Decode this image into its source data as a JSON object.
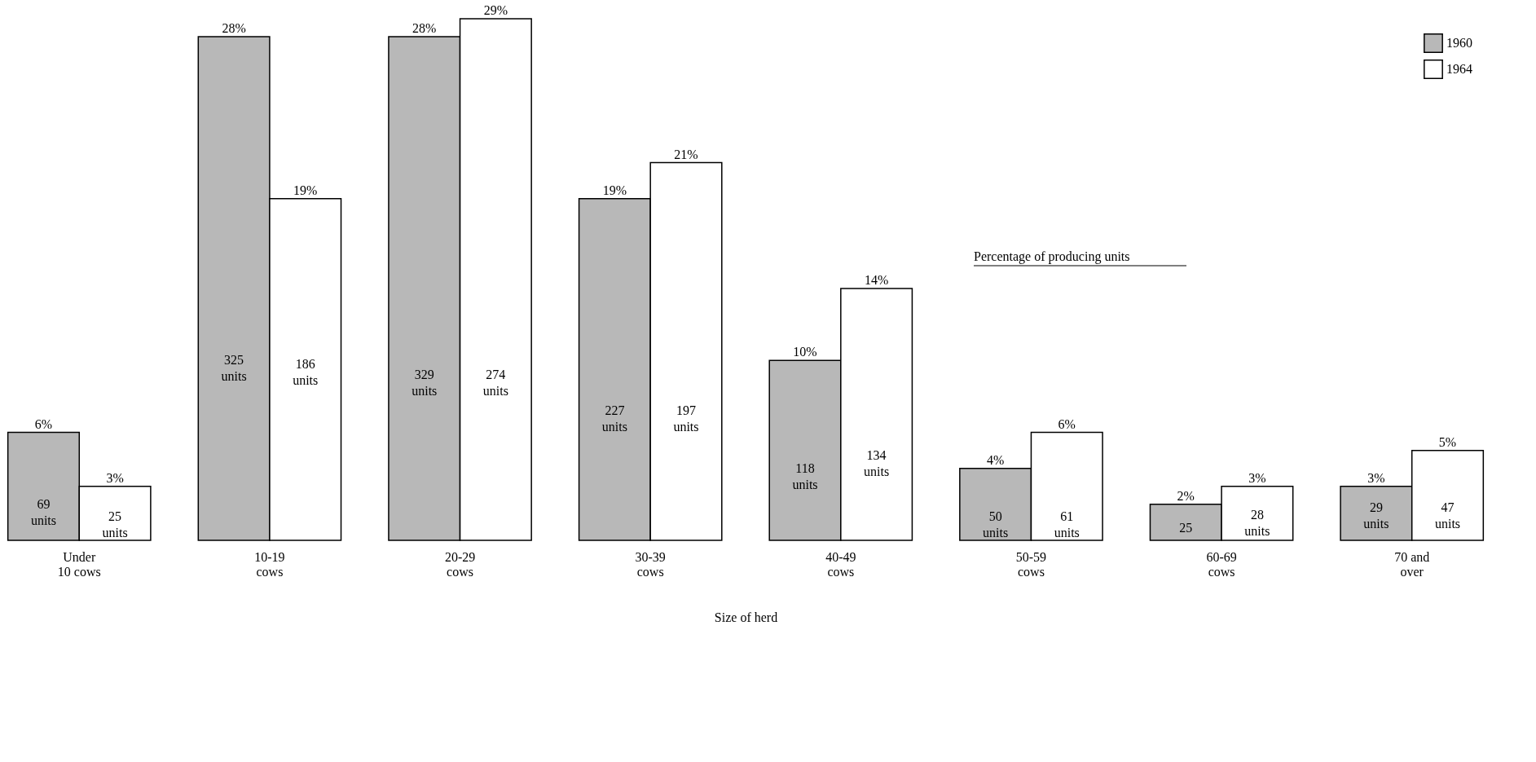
{
  "chart_data": {
    "type": "bar",
    "xlabel": "Size of herd",
    "categories": [
      "Under\n10 cows",
      "10-19\ncows",
      "20-29\ncows",
      "30-39\ncows",
      "40-49\ncows",
      "50-59\ncows",
      "60-69\ncows",
      "70 and\nover"
    ],
    "series": [
      {
        "name": "1960",
        "color": "#b8b8b8",
        "values": [
          6,
          28,
          28,
          19,
          10,
          4,
          2,
          3
        ],
        "value_labels": [
          "6%",
          "28%",
          "28%",
          "19%",
          "10%",
          "4%",
          "2%",
          "3%"
        ]
      },
      {
        "name": "1964",
        "color": "#ffffff",
        "values": [
          3,
          19,
          29,
          21,
          14,
          6,
          3,
          5
        ],
        "value_labels": [
          "3%",
          "19%",
          "29%",
          "21%",
          "14%",
          "6%",
          "3%",
          "5%"
        ]
      }
    ],
    "annotations": [
      "Percentage of producing units",
      {
        "text": "69 units",
        "x": "Under\n10 cows",
        "y": 2
      },
      {
        "text": "25 units",
        "x": "Under\n10 cows",
        "y": 1.3
      },
      {
        "text": "325 units",
        "x": "10-19\ncows",
        "y": 10
      },
      {
        "text": "186 units",
        "x": "10-19\ncows",
        "y": 9.8
      },
      {
        "text": "329 units",
        "x": "20-29\ncows",
        "y": 9.2
      },
      {
        "text": "274 units",
        "x": "20-29\ncows",
        "y": 9.2
      },
      {
        "text": "227 units",
        "x": "30-39\ncows",
        "y": 7.2
      },
      {
        "text": "197 units",
        "x": "30-39\ncows",
        "y": 7.2
      },
      {
        "text": "118 units",
        "x": "40-49\ncows",
        "y": 4
      },
      {
        "text": "134 units",
        "x": "40-49\ncows",
        "y": 4.7
      },
      {
        "text": "50 units",
        "x": "50-59\ncows",
        "y": 1.3
      },
      {
        "text": "61 units",
        "x": "50-59\ncows",
        "y": 1.3
      },
      {
        "text": "25",
        "x": "60-69\ncows",
        "y": 0.7
      },
      {
        "text": "28 units",
        "x": "60-69\ncows",
        "y": 1.4
      },
      {
        "text": "29 units",
        "x": "70 and\nover",
        "y": 1.8
      },
      {
        "text": "47 units",
        "x": "70 and\nover",
        "y": 1.8
      }
    ],
    "grid": false,
    "legend": "top right"
  }
}
